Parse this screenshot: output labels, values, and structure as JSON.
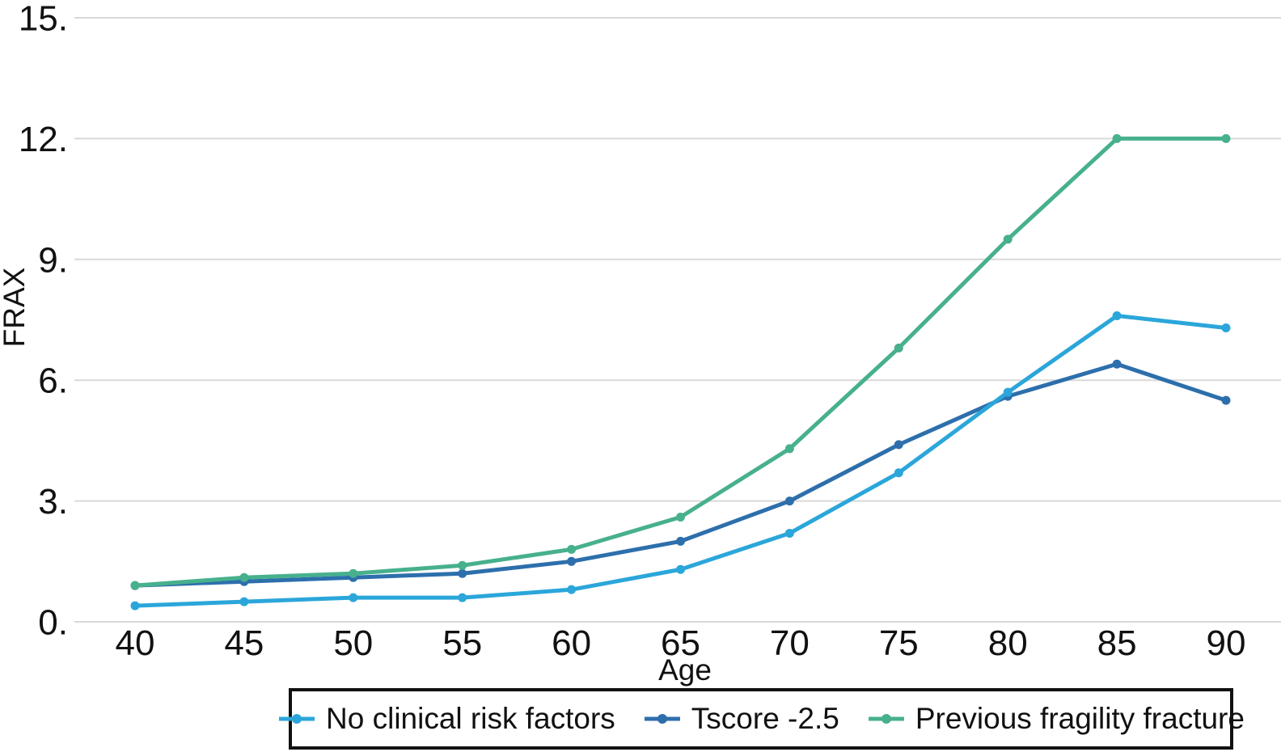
{
  "figure": {
    "background": "#ffffff",
    "text_color": "#111111"
  },
  "chart_data": {
    "type": "line",
    "title": "",
    "xlabel": "Age",
    "ylabel": "FRAX",
    "x": [
      40,
      45,
      50,
      55,
      60,
      65,
      70,
      75,
      80,
      85,
      90
    ],
    "x_tick_labels": [
      "40",
      "45",
      "50",
      "55",
      "60",
      "65",
      "70",
      "75",
      "80",
      "85",
      "90"
    ],
    "y_ticks": [
      0,
      3,
      6,
      9,
      12,
      15
    ],
    "y_tick_labels": [
      "0.",
      "3.",
      "6.",
      "9.",
      "12.",
      "15."
    ],
    "ylim": [
      0,
      15
    ],
    "xlim": [
      40,
      90
    ],
    "grid": "horizontal-only",
    "gridline_color": "#d9d9d9",
    "legend_position": "bottom",
    "legend_border_color": "#111111",
    "series": [
      {
        "name": "No clinical risk factors",
        "color": "#2ba6da",
        "marker": "dot",
        "values": [
          0.4,
          0.5,
          0.6,
          0.6,
          0.8,
          1.3,
          2.2,
          3.7,
          5.7,
          7.6,
          7.3
        ]
      },
      {
        "name": "Tscore -2.5",
        "color": "#2d6fac",
        "marker": "dot",
        "values": [
          0.9,
          1.0,
          1.1,
          1.2,
          1.5,
          2.0,
          3.0,
          4.4,
          5.6,
          6.4,
          5.5
        ]
      },
      {
        "name": "Previous fragility fracture",
        "color": "#47b08d",
        "marker": "dot",
        "values": [
          0.9,
          1.1,
          1.2,
          1.4,
          1.8,
          2.6,
          4.3,
          6.8,
          9.5,
          12.0,
          12.0
        ]
      }
    ]
  }
}
